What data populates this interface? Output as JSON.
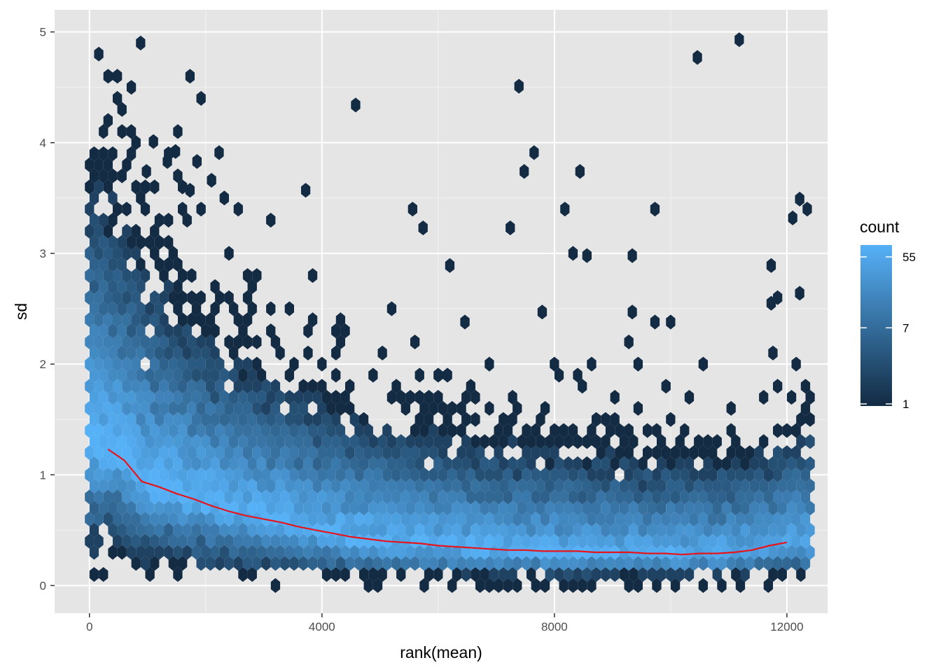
{
  "chart_data": {
    "type": "heatmap",
    "subtype": "hexbin",
    "xlabel": "rank(mean)",
    "ylabel": "sd",
    "xlim": [
      -600,
      12700
    ],
    "ylim": [
      -0.25,
      5.2
    ],
    "x_ticks": [
      0,
      4000,
      8000,
      12000
    ],
    "x_tick_labels": [
      "0",
      "4000",
      "8000",
      "12000"
    ],
    "y_ticks": [
      0,
      1,
      2,
      3,
      4,
      5
    ],
    "y_tick_labels": [
      "0",
      "1",
      "2",
      "3",
      "4",
      "5"
    ],
    "grid": true,
    "background": "#e5e5e5",
    "legend": {
      "title": "count",
      "position": "right",
      "scale": "log",
      "breaks": [
        1,
        7,
        55
      ],
      "break_labels": [
        "1",
        "7",
        "55"
      ],
      "color_low": "#132b43",
      "color_high": "#56b1f7"
    },
    "trend_line": {
      "color": "#e8141b",
      "x": [
        320,
        600,
        900,
        1200,
        1500,
        1800,
        2100,
        2400,
        2700,
        3000,
        3300,
        3600,
        3900,
        4200,
        4500,
        4800,
        5100,
        5400,
        5700,
        6000,
        6300,
        6600,
        6900,
        7200,
        7500,
        7800,
        8100,
        8400,
        8700,
        9000,
        9300,
        9600,
        9900,
        10200,
        10500,
        10800,
        11100,
        11400,
        11700,
        12000
      ],
      "y": [
        1.23,
        1.13,
        0.94,
        0.89,
        0.83,
        0.78,
        0.72,
        0.67,
        0.63,
        0.6,
        0.57,
        0.53,
        0.5,
        0.47,
        0.44,
        0.42,
        0.4,
        0.39,
        0.38,
        0.36,
        0.35,
        0.34,
        0.33,
        0.32,
        0.32,
        0.31,
        0.31,
        0.31,
        0.3,
        0.3,
        0.3,
        0.29,
        0.29,
        0.28,
        0.29,
        0.29,
        0.3,
        0.32,
        0.36,
        0.39
      ]
    },
    "outliers": [
      {
        "x": 1730,
        "y": 4.6
      },
      {
        "x": 4580,
        "y": 4.34
      },
      {
        "x": 7390,
        "y": 4.51
      },
      {
        "x": 10460,
        "y": 4.77
      },
      {
        "x": 11180,
        "y": 4.93
      },
      {
        "x": 1100,
        "y": 4.01
      },
      {
        "x": 1480,
        "y": 3.92
      },
      {
        "x": 2230,
        "y": 3.91
      },
      {
        "x": 7650,
        "y": 3.91
      },
      {
        "x": 8440,
        "y": 3.74
      },
      {
        "x": 7480,
        "y": 3.74
      },
      {
        "x": 1850,
        "y": 3.83
      },
      {
        "x": 1340,
        "y": 3.83
      },
      {
        "x": 980,
        "y": 3.74
      },
      {
        "x": 3720,
        "y": 3.57
      },
      {
        "x": 1730,
        "y": 3.57
      },
      {
        "x": 2100,
        "y": 3.66
      },
      {
        "x": 5560,
        "y": 3.4
      },
      {
        "x": 8180,
        "y": 3.4
      },
      {
        "x": 9730,
        "y": 3.4
      },
      {
        "x": 12220,
        "y": 3.49
      },
      {
        "x": 12100,
        "y": 3.32
      },
      {
        "x": 12350,
        "y": 3.4
      },
      {
        "x": 7240,
        "y": 3.23
      },
      {
        "x": 5740,
        "y": 3.23
      },
      {
        "x": 8560,
        "y": 2.98
      },
      {
        "x": 9340,
        "y": 2.98
      },
      {
        "x": 6200,
        "y": 2.89
      },
      {
        "x": 11730,
        "y": 2.89
      },
      {
        "x": 9340,
        "y": 2.47
      },
      {
        "x": 7790,
        "y": 2.47
      },
      {
        "x": 9730,
        "y": 2.38
      },
      {
        "x": 6460,
        "y": 2.38
      },
      {
        "x": 10000,
        "y": 2.38
      },
      {
        "x": 12220,
        "y": 2.64
      },
      {
        "x": 11730,
        "y": 2.55
      }
    ],
    "density_model": {
      "description": "dense band near bottom, count decreasing with sd and with rank",
      "peak_count": 55,
      "min_count": 1
    }
  }
}
